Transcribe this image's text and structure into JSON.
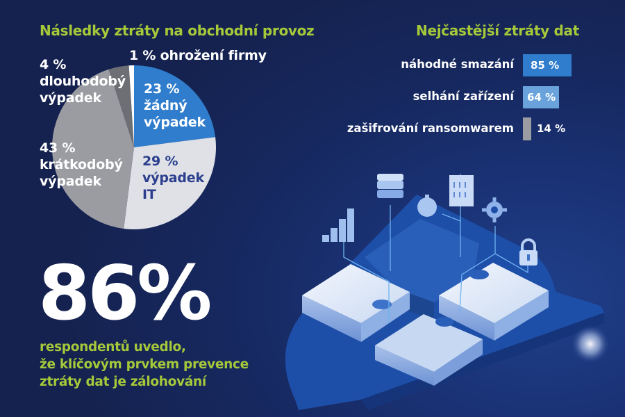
{
  "pie": {
    "title": "Následky ztráty na obchodní provoz",
    "slices": [
      {
        "percent_label": "23 %",
        "label_lines": "23 %\nžádný\nvýpadek",
        "color": "#2f7dcc",
        "text_color": "#ffffff"
      },
      {
        "percent_label": "29 %",
        "label_lines": "29 %\nvýpadek\nIT",
        "color": "#dfe1e6",
        "text_color": "#2b3f8e"
      },
      {
        "percent_label": "43 %",
        "label_lines": "43 %\nkrátkodobý\nvýpadek",
        "color": "#9a9ca2",
        "text_color": "#ffffff"
      },
      {
        "percent_label": "4 %",
        "label_lines": "4 %\ndlouhodobý\nvýpadek",
        "color": "#6d6f75",
        "text_color": "#ffffff"
      },
      {
        "percent_label": "1 %",
        "label_lines": "1 % ohrožení firmy",
        "color": "#ffffff",
        "text_color": "#ffffff"
      }
    ]
  },
  "bars": {
    "title": "Nejčastější ztráty dat",
    "items": [
      {
        "label": "náhodné smazání",
        "value_label": "85 %",
        "color": "#2f7dcc"
      },
      {
        "label": "selhání zařízení",
        "value_label": "64 %",
        "color": "#6aa3dc"
      },
      {
        "label": "zašifrování ransomwarem",
        "value_label": "14 %",
        "color": "#9a9ca2"
      }
    ]
  },
  "highlight": {
    "value": "86%",
    "lines": [
      "respondentů uvedlo,",
      "že klíčovým prvkem prevence",
      "ztráty dat je zálohování"
    ]
  },
  "colors": {
    "background": "#16285f",
    "accent_green": "#a6c93a",
    "accent_blue": "#2f7dcc"
  },
  "chart_data": [
    {
      "type": "pie",
      "title": "Následky ztráty na obchodní provoz",
      "categories": [
        "žádný výpadek",
        "výpadek IT",
        "krátkodobý výpadek",
        "dlouhodobý výpadek",
        "ohrožení firmy"
      ],
      "values": [
        23,
        29,
        43,
        4,
        1
      ],
      "unit": "%"
    },
    {
      "type": "bar",
      "orientation": "horizontal",
      "title": "Nejčastější ztráty dat",
      "categories": [
        "náhodné smazání",
        "selhání zařízení",
        "zašifrování ransomwarem"
      ],
      "values": [
        85,
        64,
        14
      ],
      "unit": "%"
    }
  ]
}
